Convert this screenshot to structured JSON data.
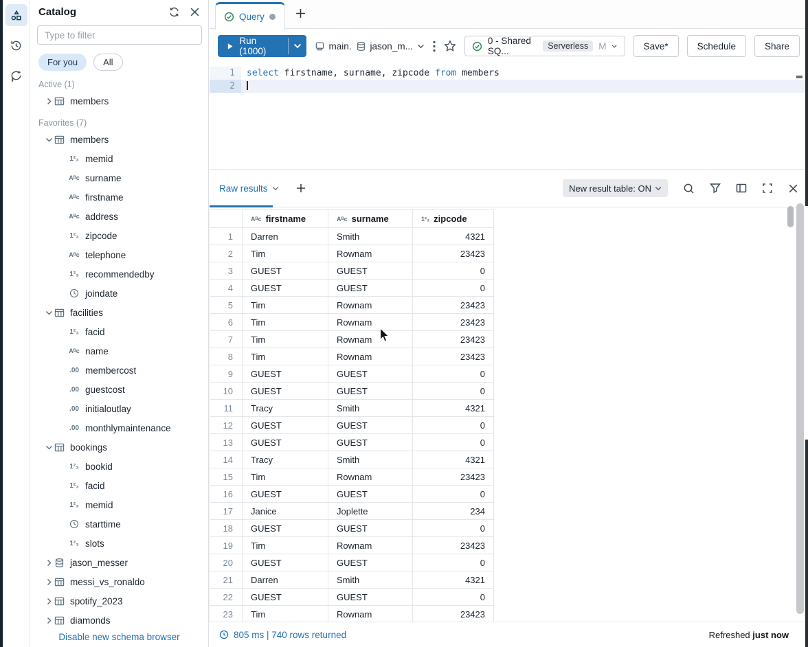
{
  "rail": {
    "items": [
      {
        "name": "catalog",
        "active": true
      },
      {
        "name": "history",
        "active": false
      },
      {
        "name": "assistant",
        "active": false
      }
    ]
  },
  "sidebar": {
    "title": "Catalog",
    "filter_placeholder": "Type to filter",
    "pills": {
      "for_you": "For you",
      "all": "All"
    },
    "active_label": "Active (1)",
    "favorites_label": "Favorites (7)",
    "active_items": [
      {
        "label": "members",
        "icon": "table",
        "chevron": "collapsed",
        "level": 0
      }
    ],
    "favorites_items": [
      {
        "label": "members",
        "icon": "table",
        "chevron": "expanded",
        "level": 0
      },
      {
        "label": "memid",
        "icon": "num",
        "level": 1
      },
      {
        "label": "surname",
        "icon": "str",
        "level": 1
      },
      {
        "label": "firstname",
        "icon": "str",
        "level": 1
      },
      {
        "label": "address",
        "icon": "str",
        "level": 1
      },
      {
        "label": "zipcode",
        "icon": "num",
        "level": 1
      },
      {
        "label": "telephone",
        "icon": "str",
        "level": 1
      },
      {
        "label": "recommendedby",
        "icon": "num",
        "level": 1
      },
      {
        "label": "joindate",
        "icon": "time",
        "level": 1
      },
      {
        "label": "facilities",
        "icon": "table",
        "chevron": "expanded",
        "level": 0
      },
      {
        "label": "facid",
        "icon": "num",
        "level": 1
      },
      {
        "label": "name",
        "icon": "str",
        "level": 1
      },
      {
        "label": "membercost",
        "icon": "dec",
        "level": 1
      },
      {
        "label": "guestcost",
        "icon": "dec",
        "level": 1
      },
      {
        "label": "initialoutlay",
        "icon": "dec",
        "level": 1
      },
      {
        "label": "monthlymaintenance",
        "icon": "dec",
        "level": 1
      },
      {
        "label": "bookings",
        "icon": "table",
        "chevron": "expanded",
        "level": 0
      },
      {
        "label": "bookid",
        "icon": "num",
        "level": 1
      },
      {
        "label": "facid",
        "icon": "num",
        "level": 1
      },
      {
        "label": "memid",
        "icon": "num",
        "level": 1
      },
      {
        "label": "starttime",
        "icon": "time",
        "level": 1
      },
      {
        "label": "slots",
        "icon": "num",
        "level": 1
      },
      {
        "label": "jason_messer",
        "icon": "db",
        "chevron": "collapsed",
        "level": 0
      },
      {
        "label": "messi_vs_ronaldo",
        "icon": "table",
        "chevron": "collapsed",
        "level": 0
      },
      {
        "label": "spotify_2023",
        "icon": "table",
        "chevron": "collapsed",
        "level": 0
      },
      {
        "label": "diamonds",
        "icon": "table",
        "chevron": "collapsed",
        "level": 0
      }
    ],
    "footer_link": "Disable new schema browser"
  },
  "tabs": {
    "query_label": "Query"
  },
  "toolbar": {
    "run_label": "Run (1000)",
    "catalog_context": "main.",
    "schema_context": "jason_m...",
    "warehouse_name": "0 - Shared SQ...",
    "warehouse_badge": "Serverless",
    "warehouse_size": "M",
    "save_label": "Save*",
    "schedule_label": "Schedule",
    "share_label": "Share"
  },
  "editor": {
    "lines": [
      {
        "num": "1",
        "active": false,
        "tokens": [
          {
            "text": "select",
            "kw": true
          },
          {
            "text": " firstname, surname, zipcode ",
            "kw": false
          },
          {
            "text": "from",
            "kw": true
          },
          {
            "text": " members",
            "kw": false
          }
        ]
      },
      {
        "num": "2",
        "active": true,
        "tokens": []
      }
    ]
  },
  "results": {
    "tab_label": "Raw results",
    "toggle_label": "New result table: ON",
    "columns": [
      {
        "label": "firstname",
        "type": "str"
      },
      {
        "label": "surname",
        "type": "str"
      },
      {
        "label": "zipcode",
        "type": "num"
      }
    ],
    "rows": [
      [
        "1",
        "Darren",
        "Smith",
        "4321"
      ],
      [
        "2",
        "Tim",
        "Rownam",
        "23423"
      ],
      [
        "3",
        "GUEST",
        "GUEST",
        "0"
      ],
      [
        "4",
        "GUEST",
        "GUEST",
        "0"
      ],
      [
        "5",
        "Tim",
        "Rownam",
        "23423"
      ],
      [
        "6",
        "Tim",
        "Rownam",
        "23423"
      ],
      [
        "7",
        "Tim",
        "Rownam",
        "23423"
      ],
      [
        "8",
        "Tim",
        "Rownam",
        "23423"
      ],
      [
        "9",
        "GUEST",
        "GUEST",
        "0"
      ],
      [
        "10",
        "GUEST",
        "GUEST",
        "0"
      ],
      [
        "11",
        "Tracy",
        "Smith",
        "4321"
      ],
      [
        "12",
        "GUEST",
        "GUEST",
        "0"
      ],
      [
        "13",
        "GUEST",
        "GUEST",
        "0"
      ],
      [
        "14",
        "Tracy",
        "Smith",
        "4321"
      ],
      [
        "15",
        "Tim",
        "Rownam",
        "23423"
      ],
      [
        "16",
        "GUEST",
        "GUEST",
        "0"
      ],
      [
        "17",
        "Janice",
        "Joplette",
        "234"
      ],
      [
        "18",
        "GUEST",
        "GUEST",
        "0"
      ],
      [
        "19",
        "Tim",
        "Rownam",
        "23423"
      ],
      [
        "20",
        "GUEST",
        "GUEST",
        "0"
      ],
      [
        "21",
        "Darren",
        "Smith",
        "4321"
      ],
      [
        "22",
        "GUEST",
        "GUEST",
        "0"
      ],
      [
        "23",
        "Tim",
        "Rownam",
        "23423"
      ]
    ],
    "status_left": "805 ms | 740 rows returned",
    "refreshed_prefix": "Refreshed",
    "refreshed_value": "just now"
  },
  "colors": {
    "accent": "#2272b4",
    "dark_edge": "#16232e",
    "green_check": "#2e8555"
  }
}
